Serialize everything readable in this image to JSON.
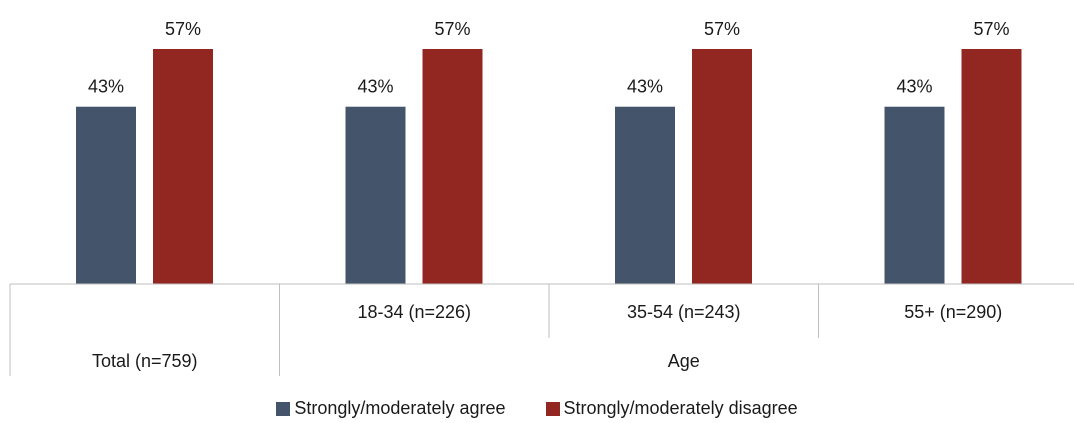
{
  "chart_data": {
    "type": "bar",
    "categories": [
      "Total (n=759)",
      "18-34 (n=226)",
      "35-54 (n=243)",
      "55+ (n=290)"
    ],
    "group_labels": [
      {
        "label": "Total (n=759)",
        "categories": [
          "Total (n=759)"
        ]
      },
      {
        "label": "Age",
        "categories": [
          "18-34 (n=226)",
          "35-54 (n=243)",
          "55+ (n=290)"
        ]
      }
    ],
    "series": [
      {
        "name": "Strongly/moderately agree",
        "values": [
          43,
          43,
          43,
          43
        ],
        "labels": [
          "43%",
          "43%",
          "43%",
          "43%"
        ],
        "color": "#44546a"
      },
      {
        "name": "Strongly/moderately disagree",
        "values": [
          57,
          57,
          57,
          57
        ],
        "labels": [
          "57%",
          "57%",
          "57%",
          "57%"
        ],
        "color": "#922721"
      }
    ],
    "ylim": [
      0,
      57
    ],
    "grid": false,
    "legend_position": "bottom"
  }
}
